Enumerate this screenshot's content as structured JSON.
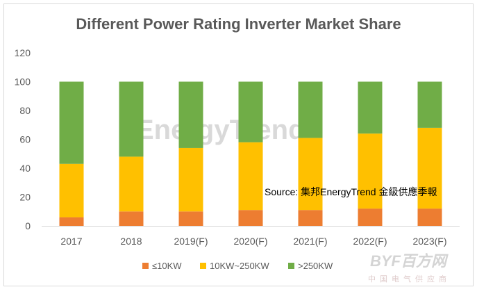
{
  "chart_data": {
    "type": "bar",
    "stacked": true,
    "title": "Different Power Rating Inverter Market Share",
    "categories": [
      "2017",
      "2018",
      "2019(F)",
      "2020(F)",
      "2021(F)",
      "2022(F)",
      "2023(F)"
    ],
    "series": [
      {
        "name": "≤10KW",
        "color": "#ed7d31",
        "values": [
          6,
          10,
          10,
          11,
          11,
          12,
          12
        ]
      },
      {
        "name": "10KW~250KW",
        "color": "#ffc000",
        "values": [
          37,
          38,
          44,
          47,
          50,
          52,
          56
        ]
      },
      {
        "name": ">250KW",
        "color": "#70ad47",
        "values": [
          57,
          52,
          46,
          42,
          39,
          36,
          32
        ]
      }
    ],
    "yticks": [
      "0",
      "20",
      "40",
      "60",
      "80",
      "100",
      "120"
    ],
    "ylim": [
      0,
      120
    ],
    "xlabel": "",
    "ylabel": "",
    "grid": false,
    "legend": "bottom",
    "annotation": "Source: 集邦EnergyTrend 金級供應季報"
  },
  "watermarks": {
    "energytrend": "EnergyTrend",
    "byf": "BYF百方网",
    "byf_sub": "中国电气供应商"
  }
}
